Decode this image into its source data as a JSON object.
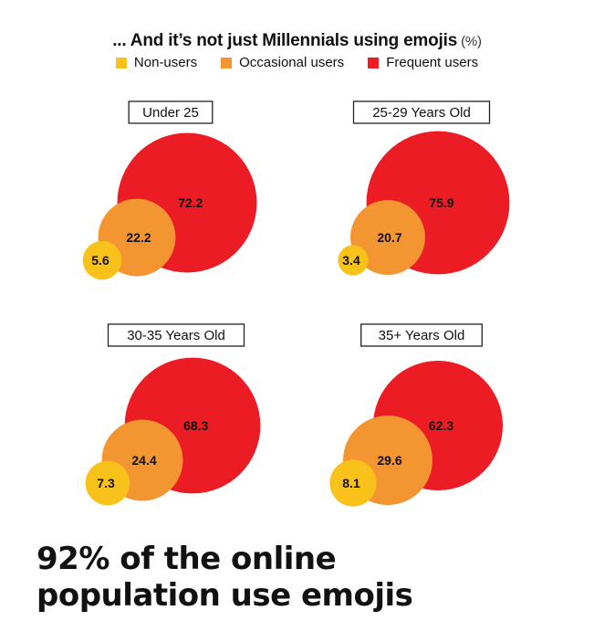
{
  "title": "... And it’s not just Millennials using emojis",
  "title_unit": "(%)",
  "legend": [
    {
      "label": "Non-users",
      "color": "#F9C21B"
    },
    {
      "label": "Occasional users",
      "color": "#F39530"
    },
    {
      "label": "Frequent users",
      "color": "#EC1C24"
    }
  ],
  "chart_data": {
    "type": "bubble",
    "unit": "%",
    "series_names": [
      "Non-users",
      "Occasional users",
      "Frequent users"
    ],
    "colors": {
      "non_users": "#F9C21B",
      "occasional": "#F39530",
      "frequent": "#EC1C24"
    },
    "panels": [
      {
        "label": "Under 25",
        "values": [
          5.6,
          22.2,
          72.2
        ]
      },
      {
        "label": "25-29 Years Old",
        "values": [
          3.4,
          20.7,
          75.9
        ]
      },
      {
        "label": "30-35 Years Old",
        "values": [
          7.3,
          24.4,
          68.3
        ]
      },
      {
        "label": "35+ Years Old",
        "values": [
          8.1,
          29.6,
          62.3
        ]
      }
    ]
  },
  "footer": {
    "line1": "92% of the online",
    "line2": "population use emojis"
  }
}
